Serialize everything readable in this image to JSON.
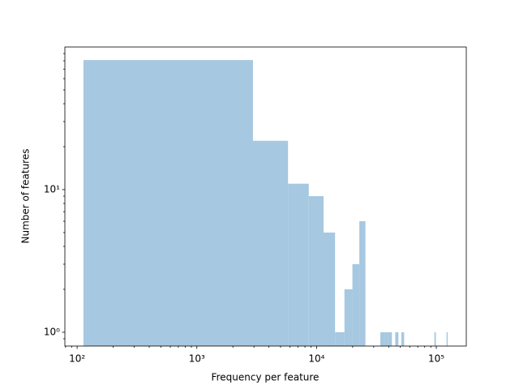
{
  "chart_data": {
    "type": "histogram",
    "xlabel": "Frequency per feature",
    "ylabel": "Number of features",
    "bins": [
      113,
      2943,
      5773,
      8603,
      11433,
      14263,
      17093,
      19923,
      22753,
      25583,
      28413,
      31243,
      34073,
      36903,
      39733,
      42563,
      45393,
      48223,
      51053,
      53883,
      56713,
      59543,
      62373,
      65203,
      68033,
      70863,
      73693,
      76523,
      79353,
      82183,
      85013,
      87843,
      90673,
      93503,
      96333,
      99163,
      101993,
      104823,
      107653,
      110483,
      113313,
      116143,
      118973,
      121803,
      124633
    ],
    "values": [
      81,
      22,
      11,
      9,
      5,
      1,
      2,
      3,
      6,
      0,
      0,
      0,
      1,
      1,
      1,
      0,
      1,
      0,
      1,
      0,
      0,
      0,
      0,
      0,
      0,
      0,
      0,
      0,
      0,
      0,
      0,
      0,
      0,
      0,
      1,
      0,
      0,
      0,
      0,
      0,
      0,
      0,
      0,
      1
    ],
    "color": "#a6c8e0",
    "xscale": "log",
    "yscale": "log",
    "xlim": [
      79,
      178000
    ],
    "ylim": [
      0.8,
      100
    ],
    "xticks": [
      {
        "value": 100,
        "label": "10²"
      },
      {
        "value": 1000,
        "label": "10³"
      },
      {
        "value": 10000,
        "label": "10⁴"
      },
      {
        "value": 100000,
        "label": "10⁵"
      }
    ],
    "yticks": [
      {
        "value": 1,
        "label": "10⁰"
      },
      {
        "value": 10,
        "label": "10¹"
      }
    ]
  }
}
